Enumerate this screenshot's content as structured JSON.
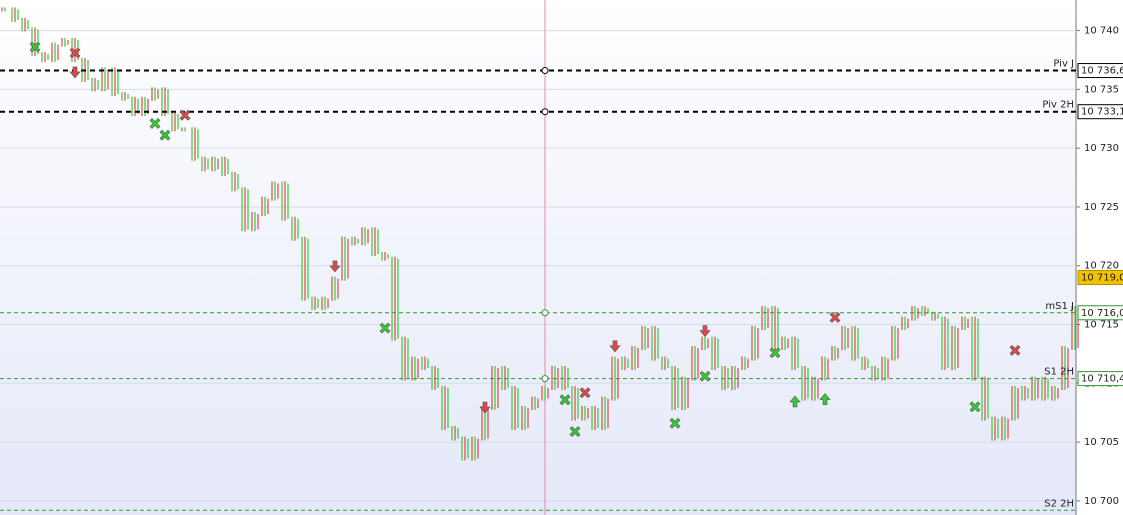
{
  "chart_data": {
    "type": "bar",
    "values": [
      10741.8,
      10740.9,
      10740.1,
      10738.0,
      10737.5,
      10738.8,
      10739.2,
      10737.5,
      10735.8,
      10735.0,
      10736.7,
      10734.6,
      10734.2,
      10732.9,
      10734.2,
      10735.0,
      10732.9,
      10731.6,
      10731.6,
      10729.1,
      10728.2,
      10729.1,
      10727.8,
      10726.5,
      10723.1,
      10724.4,
      10725.7,
      10727.0,
      10724.0,
      10722.3,
      10717.2,
      10716.4,
      10717.2,
      10718.9,
      10722.3,
      10721.9,
      10723.1,
      10721.0,
      10720.6,
      10713.8,
      10710.4,
      10712.1,
      10711.3,
      10709.6,
      10706.2,
      10705.3,
      10703.6,
      10705.3,
      10707.9,
      10711.3,
      10709.6,
      10706.2,
      10707.9,
      10708.7,
      10709.6,
      10711.3,
      10709.6,
      10707.0,
      10707.9,
      10706.2,
      10708.7,
      10712.1,
      10711.3,
      10713.0,
      10714.7,
      10712.1,
      10711.3,
      10707.9,
      10710.4,
      10713.0,
      10713.8,
      10711.3,
      10709.6,
      10711.3,
      10712.1,
      10714.7,
      10716.4,
      10713.0,
      10713.8,
      10711.3,
      10708.7,
      10710.4,
      10712.1,
      10713.0,
      10714.7,
      10712.1,
      10711.3,
      10710.4,
      10712.1,
      10714.7,
      10715.5,
      10716.4,
      10715.9,
      10715.5,
      10711.3,
      10714.7,
      10715.5,
      10710.4,
      10707.0,
      10705.3,
      10707.0,
      10709.6,
      10708.7,
      10710.4,
      10708.7,
      10709.6,
      10713.0,
      10716.4
    ],
    "up_color": "#33cc33",
    "down_color": "#e04848",
    "ylim": [
      10698.8,
      10742.6
    ],
    "yticks": [
      {
        "value": 10700,
        "label": "10 700"
      },
      {
        "value": 10705,
        "label": "10 705"
      },
      {
        "value": 10710,
        "label": "10 710"
      },
      {
        "value": 10715,
        "label": "10 715"
      },
      {
        "value": 10720,
        "label": "10 720"
      },
      {
        "value": 10725,
        "label": "10 725"
      },
      {
        "value": 10730,
        "label": "10 730"
      },
      {
        "value": 10735,
        "label": "10 735"
      },
      {
        "value": 10740,
        "label": "10 740"
      }
    ],
    "grid": true,
    "levels": [
      {
        "name": "Piv J",
        "value": 10736.6,
        "value_label": "10 736,6",
        "color": "#000000"
      },
      {
        "name": "Piv 2H",
        "value": 10733.1,
        "value_label": "10 733,1",
        "color": "#000000"
      },
      {
        "name": "mS1 J",
        "value": 10716.0,
        "value_label": "10 716,0",
        "color": "#2e9a2e"
      },
      {
        "name": "S1 2H",
        "value": 10710.4,
        "value_label": "10 710,4",
        "color": "#2e9a2e"
      },
      {
        "name": "S2 2H",
        "value": 10699.2,
        "color": "#2e9a2e"
      }
    ],
    "last_price": {
      "value": 10719.0,
      "label": "10 719,0"
    },
    "cursor_index": 54,
    "markers": [
      {
        "index": 3,
        "value": 10738.6,
        "kind": "cross",
        "color": "#33cc33"
      },
      {
        "index": 7,
        "value": 10738.1,
        "kind": "cross",
        "color": "#e04848"
      },
      {
        "index": 7,
        "value": 10736.4,
        "kind": "down",
        "color": "#e04848"
      },
      {
        "index": 15,
        "value": 10732.1,
        "kind": "cross",
        "color": "#33cc33"
      },
      {
        "index": 16,
        "value": 10731.1,
        "kind": "cross",
        "color": "#33cc33"
      },
      {
        "index": 18,
        "value": 10732.8,
        "kind": "cross",
        "color": "#e04848"
      },
      {
        "index": 33,
        "value": 10719.9,
        "kind": "down",
        "color": "#e04848"
      },
      {
        "index": 38,
        "value": 10714.7,
        "kind": "cross",
        "color": "#33cc33"
      },
      {
        "index": 48,
        "value": 10707.9,
        "kind": "down",
        "color": "#e04848"
      },
      {
        "index": 56,
        "value": 10708.6,
        "kind": "cross",
        "color": "#33cc33"
      },
      {
        "index": 57,
        "value": 10705.9,
        "kind": "cross",
        "color": "#33cc33"
      },
      {
        "index": 58,
        "value": 10709.2,
        "kind": "cross",
        "color": "#e04848"
      },
      {
        "index": 61,
        "value": 10713.1,
        "kind": "down",
        "color": "#e04848"
      },
      {
        "index": 67,
        "value": 10706.6,
        "kind": "cross",
        "color": "#33cc33"
      },
      {
        "index": 70,
        "value": 10714.4,
        "kind": "down",
        "color": "#e04848"
      },
      {
        "index": 70,
        "value": 10710.6,
        "kind": "cross",
        "color": "#33cc33"
      },
      {
        "index": 77,
        "value": 10712.6,
        "kind": "cross",
        "color": "#33cc33"
      },
      {
        "index": 79,
        "value": 10708.5,
        "kind": "up",
        "color": "#33cc33"
      },
      {
        "index": 82,
        "value": 10708.7,
        "kind": "up",
        "color": "#33cc33"
      },
      {
        "index": 83,
        "value": 10715.6,
        "kind": "cross",
        "color": "#e04848"
      },
      {
        "index": 97,
        "value": 10708.0,
        "kind": "cross",
        "color": "#33cc33"
      },
      {
        "index": 101,
        "value": 10712.8,
        "kind": "cross",
        "color": "#e04848"
      }
    ]
  }
}
